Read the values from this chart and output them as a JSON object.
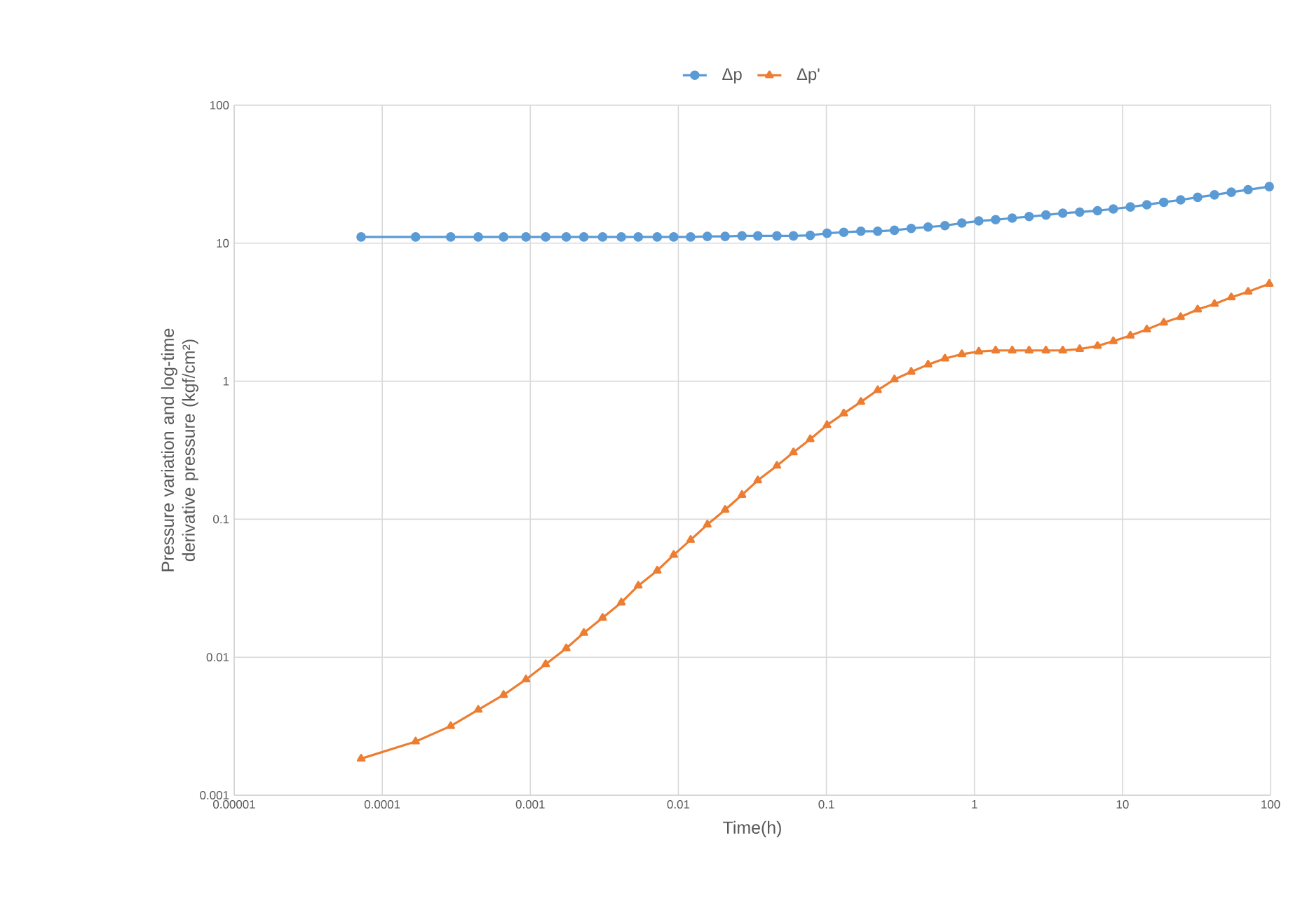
{
  "chart_data": {
    "type": "line",
    "xlabel": "Time(h)",
    "ylabel": "Pressure variation and log-time derivative pressure (kgf/cm²)",
    "log": "xy",
    "grid": true,
    "legend": "top",
    "xlim": [
      1e-05,
      100
    ],
    "ylim": [
      0.001,
      100
    ],
    "xticks": [
      {
        "value": 1e-05,
        "label": "0.00001"
      },
      {
        "value": 0.0001,
        "label": "0.0001"
      },
      {
        "value": 0.001,
        "label": "0.001"
      },
      {
        "value": 0.01,
        "label": "0.01"
      },
      {
        "value": 0.1,
        "label": "0.1"
      },
      {
        "value": 1,
        "label": "1"
      },
      {
        "value": 10,
        "label": "10"
      },
      {
        "value": 100,
        "label": "100"
      }
    ],
    "yticks": [
      {
        "value": 0.001,
        "label": "0.001"
      },
      {
        "value": 0.01,
        "label": "0.01"
      },
      {
        "value": 0.1,
        "label": "0.1"
      },
      {
        "value": 1,
        "label": "1"
      },
      {
        "value": 10,
        "label": "10"
      },
      {
        "value": 100,
        "label": "100"
      }
    ],
    "x": [
      7.2e-05,
      0.000168,
      0.00029,
      0.000445,
      0.00066,
      0.000935,
      0.00127,
      0.00175,
      0.0023,
      0.00308,
      0.00412,
      0.00536,
      0.0072,
      0.0093,
      0.0121,
      0.0157,
      0.0207,
      0.0269,
      0.0344,
      0.0463,
      0.0599,
      0.0778,
      0.101,
      0.131,
      0.171,
      0.222,
      0.288,
      0.374,
      0.486,
      0.632,
      0.822,
      1.07,
      1.39,
      1.8,
      2.34,
      3.04,
      3.95,
      5.14,
      6.78,
      8.67,
      11.3,
      14.6,
      19.0,
      24.7,
      32.2,
      41.8,
      54.3,
      70.5,
      98
    ],
    "series": [
      {
        "name": "Δp",
        "color": "#5b9bd5",
        "marker": "circle",
        "values": [
          11.1,
          11.1,
          11.1,
          11.1,
          11.1,
          11.1,
          11.1,
          11.1,
          11.1,
          11.1,
          11.1,
          11.1,
          11.1,
          11.1,
          11.1,
          11.2,
          11.2,
          11.3,
          11.3,
          11.3,
          11.3,
          11.4,
          11.8,
          12.0,
          12.2,
          12.2,
          12.4,
          12.8,
          13.1,
          13.4,
          14.0,
          14.5,
          14.8,
          15.2,
          15.6,
          16.0,
          16.5,
          16.8,
          17.2,
          17.7,
          18.3,
          19.0,
          19.8,
          20.6,
          21.5,
          22.4,
          23.4,
          24.4,
          25.7
        ]
      },
      {
        "name": "Δp'",
        "color": "#ed7d31",
        "marker": "triangle",
        "values": [
          0.00184,
          0.00245,
          0.00317,
          0.00416,
          0.00533,
          0.0069,
          0.0089,
          0.0116,
          0.015,
          0.0193,
          0.0249,
          0.033,
          0.0424,
          0.0551,
          0.0708,
          0.0914,
          0.117,
          0.15,
          0.191,
          0.244,
          0.305,
          0.38,
          0.481,
          0.584,
          0.708,
          0.861,
          1.03,
          1.17,
          1.32,
          1.46,
          1.57,
          1.64,
          1.67,
          1.67,
          1.67,
          1.67,
          1.67,
          1.71,
          1.8,
          1.95,
          2.14,
          2.37,
          2.66,
          2.92,
          3.31,
          3.63,
          4.05,
          4.45,
          5.08
        ]
      }
    ]
  }
}
